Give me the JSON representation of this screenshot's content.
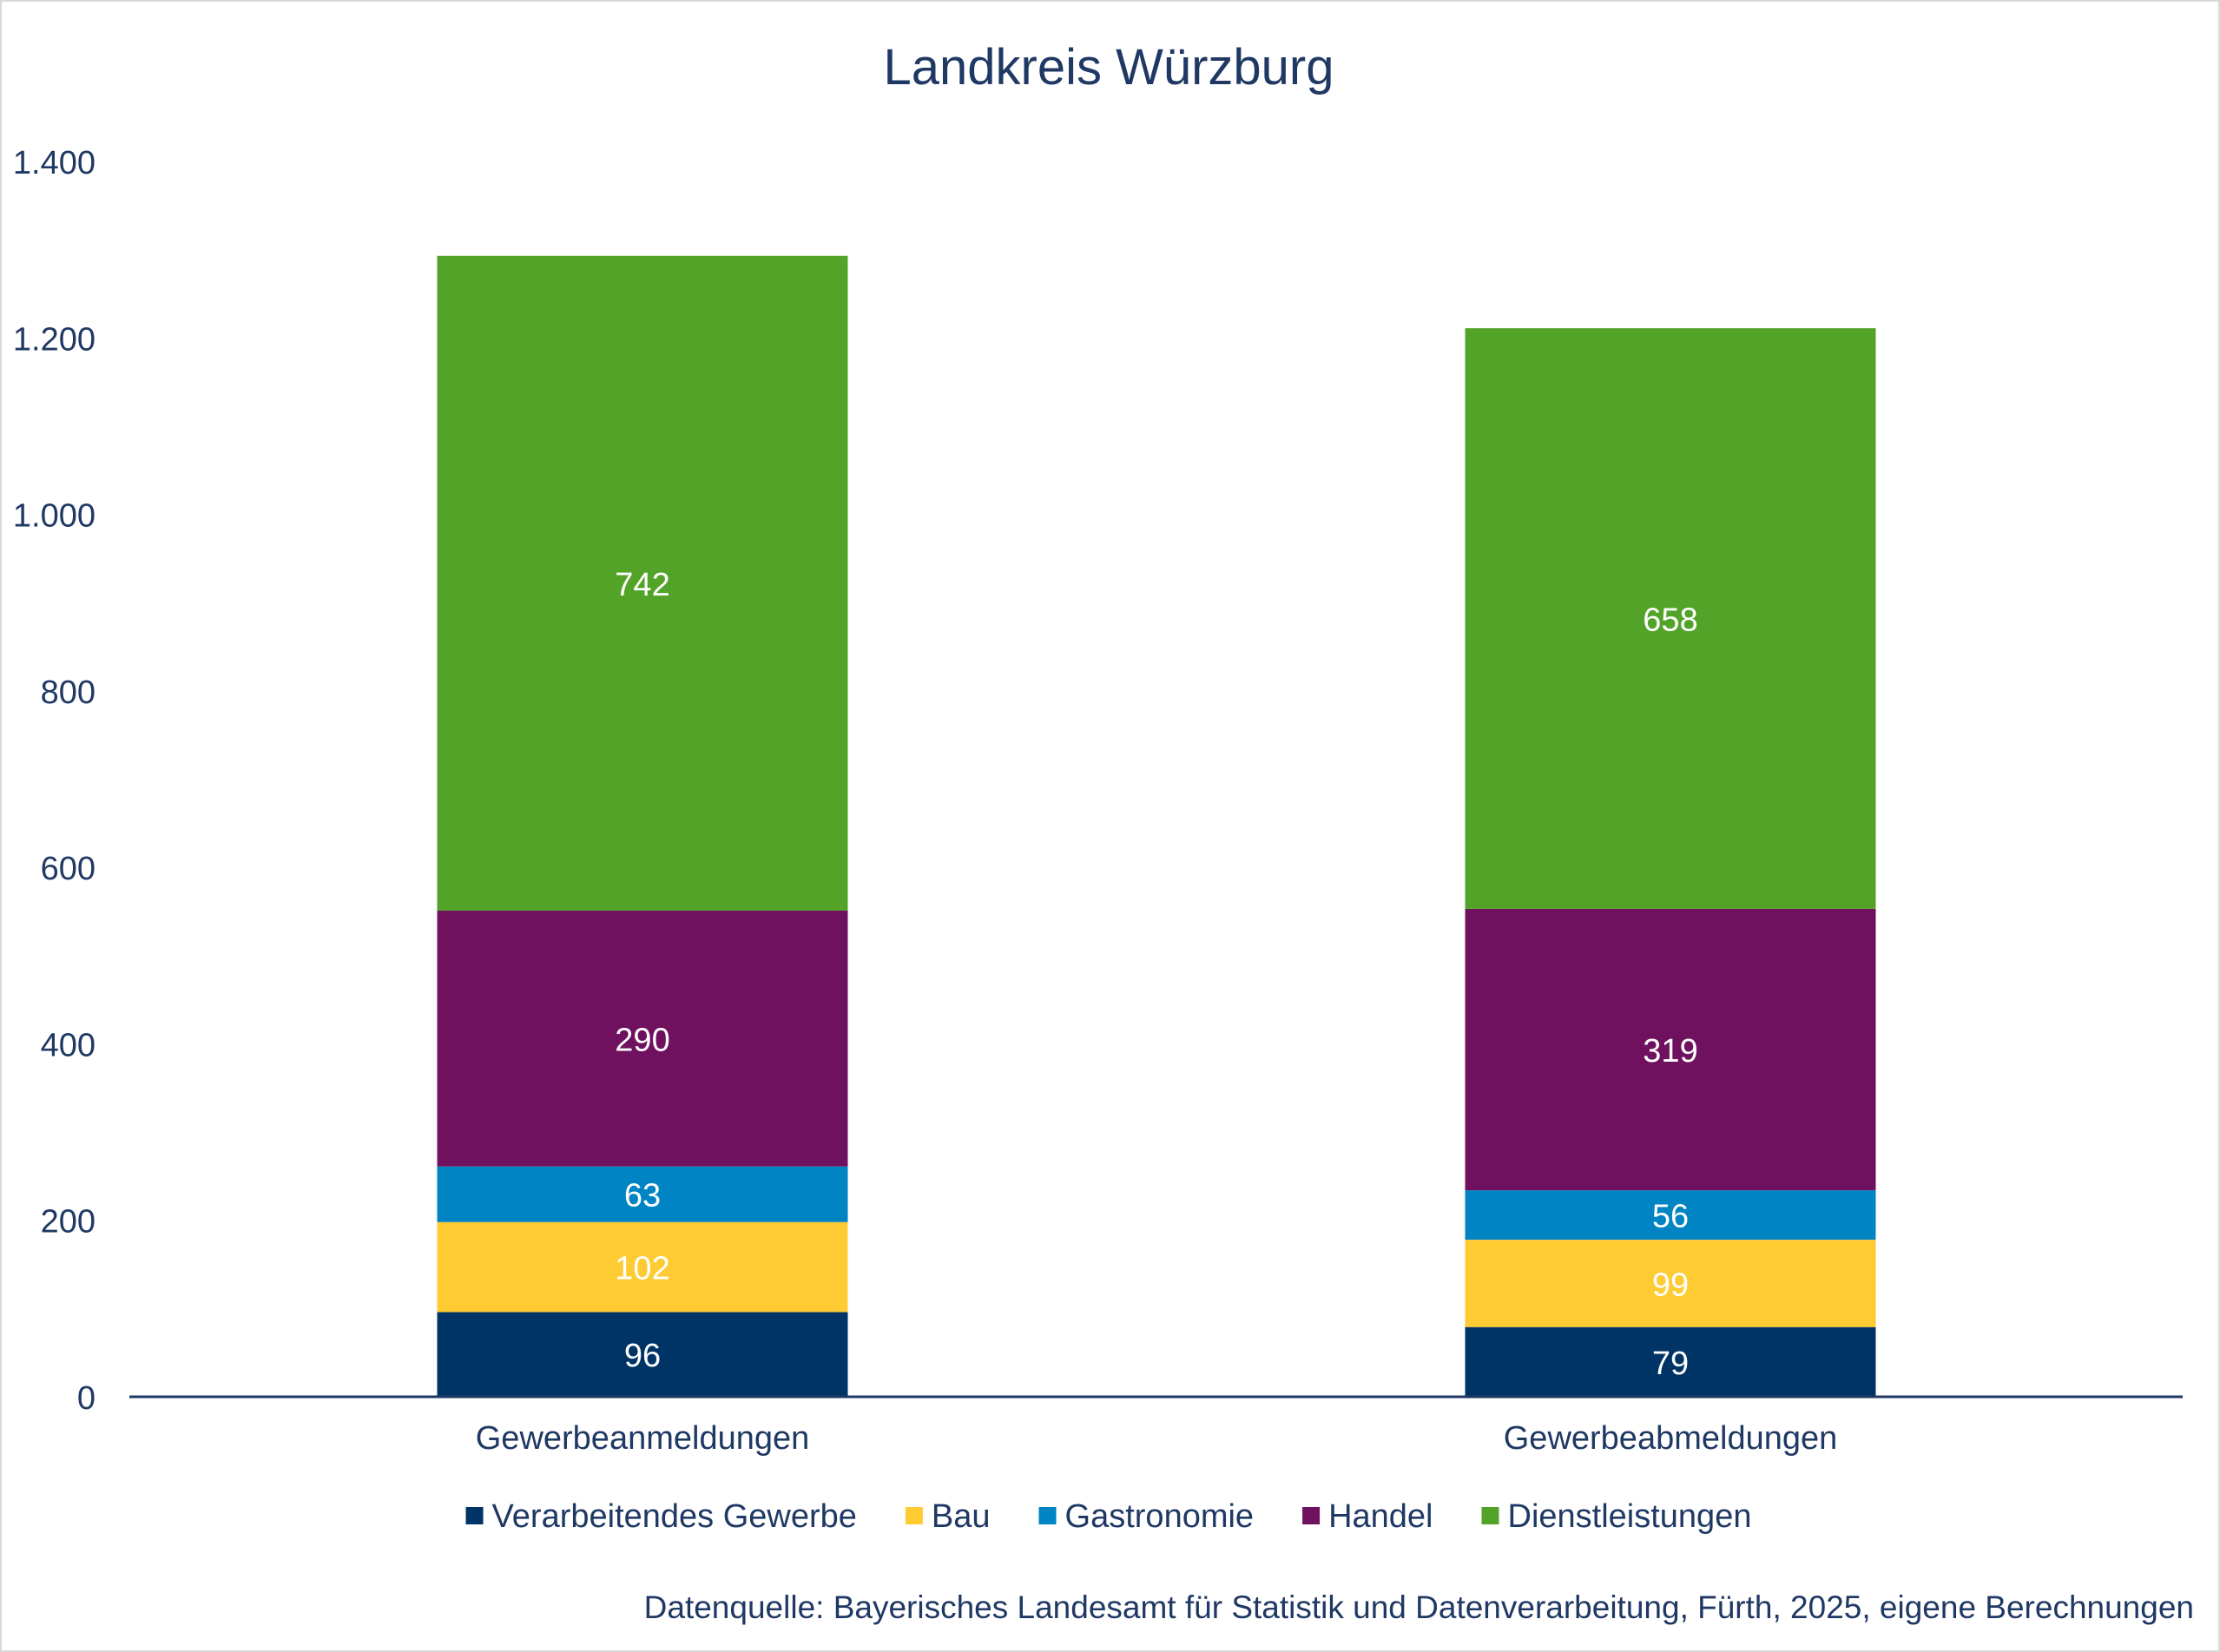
{
  "chart_data": {
    "type": "bar",
    "stacked": true,
    "title": "Landkreis Würzburg",
    "categories": [
      "Gewerbeanmeldungen",
      "Gewerbeabmeldungen"
    ],
    "series": [
      {
        "name": "Verarbeitendes Gewerbe",
        "color": "#003366",
        "values": [
          96,
          79
        ]
      },
      {
        "name": "Bau",
        "color": "#FECB33",
        "values": [
          102,
          99
        ]
      },
      {
        "name": "Gastronomie",
        "color": "#0084C3",
        "values": [
          63,
          56
        ]
      },
      {
        "name": "Handel",
        "color": "#6F115E",
        "values": [
          290,
          319
        ]
      },
      {
        "name": "Dienstleistungen",
        "color": "#54A329",
        "values": [
          742,
          658
        ]
      }
    ],
    "ylim": [
      0,
      1400
    ],
    "yticks": [
      0,
      200,
      400,
      600,
      800,
      1000,
      1200,
      1400
    ],
    "ytick_labels": [
      "0",
      "200",
      "400",
      "600",
      "800",
      "1.000",
      "1.200",
      "1.400"
    ],
    "xlabel": "",
    "ylabel": "",
    "grid": false,
    "legend": "bottom",
    "data_labels": true
  },
  "source_note": "Datenquelle: Bayerisches Landesamt für Statistik und Datenverarbeitung, Fürth, 2025, eigene Berechnungen",
  "colors": {
    "text": "#1F3864",
    "axis": "#1F3864",
    "label_on_bar": "#ffffff"
  }
}
